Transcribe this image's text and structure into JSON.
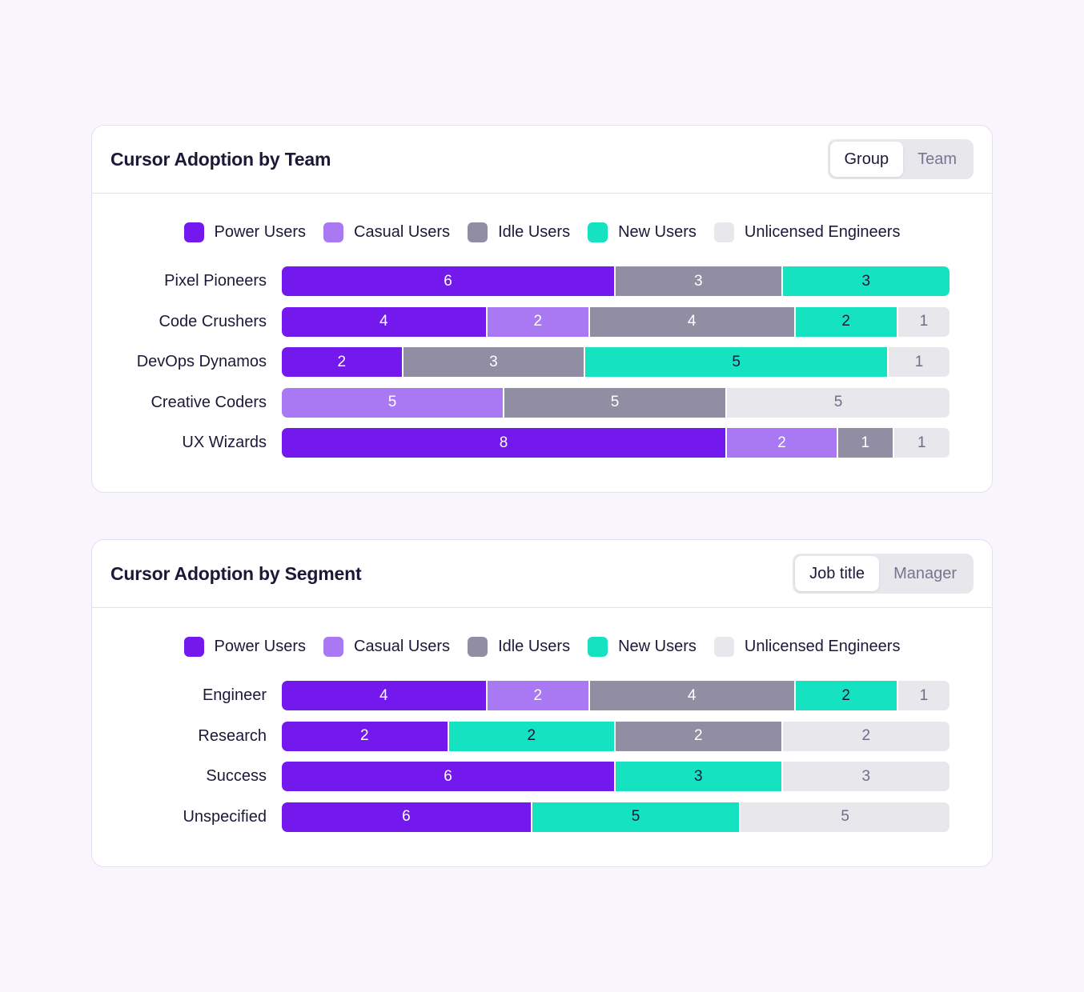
{
  "colors": {
    "power": "#7419ee",
    "casual": "#a879f3",
    "idle": "#918ea4",
    "new": "#14e2c1",
    "unlicensed": "#e8e7ec"
  },
  "text_colors": {
    "power": "#ffffff",
    "casual": "#ffffff",
    "idle": "#ffffff",
    "new": "#1b1938",
    "unlicensed": "#6f6d88"
  },
  "legend": [
    {
      "key": "power",
      "label": "Power Users"
    },
    {
      "key": "casual",
      "label": "Casual Users"
    },
    {
      "key": "idle",
      "label": "Idle Users"
    },
    {
      "key": "new",
      "label": "New Users"
    },
    {
      "key": "unlicensed",
      "label": "Unlicensed Engineers"
    }
  ],
  "cards": [
    {
      "title": "Cursor Adoption by Team",
      "toggle": [
        {
          "label": "Group",
          "active": true
        },
        {
          "label": "Team",
          "active": false
        }
      ]
    },
    {
      "title": "Cursor Adoption by Segment",
      "toggle": [
        {
          "label": "Job title",
          "active": true
        },
        {
          "label": "Manager",
          "active": false
        }
      ]
    }
  ],
  "chart_data": [
    {
      "type": "bar",
      "orientation": "horizontal",
      "stacked": true,
      "title": "Cursor Adoption by Team",
      "legend_position": "top-center",
      "series_keys": [
        "power",
        "casual",
        "idle",
        "new",
        "unlicensed"
      ],
      "series_names": [
        "Power Users",
        "Casual Users",
        "Idle Users",
        "New Users",
        "Unlicensed Engineers"
      ],
      "categories": [
        "Pixel Pioneers",
        "Code Crushers",
        "DevOps Dynamos",
        "Creative Coders",
        "UX Wizards"
      ],
      "values": [
        {
          "power": 6,
          "casual": 0,
          "idle": 3,
          "new": 3,
          "unlicensed": 0
        },
        {
          "power": 4,
          "casual": 2,
          "idle": 4,
          "new": 2,
          "unlicensed": 1
        },
        {
          "power": 2,
          "casual": 0,
          "idle": 3,
          "new": 5,
          "unlicensed": 1
        },
        {
          "power": 0,
          "casual": 5,
          "idle": 5,
          "new": 0,
          "unlicensed": 5
        },
        {
          "power": 8,
          "casual": 2,
          "idle": 1,
          "new": 0,
          "unlicensed": 1
        }
      ]
    },
    {
      "type": "bar",
      "orientation": "horizontal",
      "stacked": true,
      "title": "Cursor Adoption by Segment",
      "legend_position": "top-center",
      "series_keys": [
        "power",
        "casual",
        "idle",
        "new",
        "unlicensed"
      ],
      "series_names": [
        "Power Users",
        "Casual Users",
        "Idle Users",
        "New Users",
        "Unlicensed Engineers"
      ],
      "categories": [
        "Engineer",
        "Research",
        "Success",
        "Unspecified"
      ],
      "segment_order": [
        [
          "power",
          "casual",
          "idle",
          "new",
          "unlicensed"
        ],
        [
          "power",
          "new",
          "idle",
          "unlicensed"
        ],
        [
          "power",
          "new",
          "unlicensed"
        ],
        [
          "power",
          "new",
          "unlicensed"
        ]
      ],
      "values": [
        {
          "power": 4,
          "casual": 2,
          "idle": 4,
          "new": 2,
          "unlicensed": 1
        },
        {
          "power": 2,
          "casual": 0,
          "idle": 2,
          "new": 2,
          "unlicensed": 2
        },
        {
          "power": 6,
          "casual": 0,
          "idle": 0,
          "new": 3,
          "unlicensed": 3
        },
        {
          "power": 6,
          "casual": 0,
          "idle": 0,
          "new": 5,
          "unlicensed": 5
        }
      ]
    }
  ]
}
